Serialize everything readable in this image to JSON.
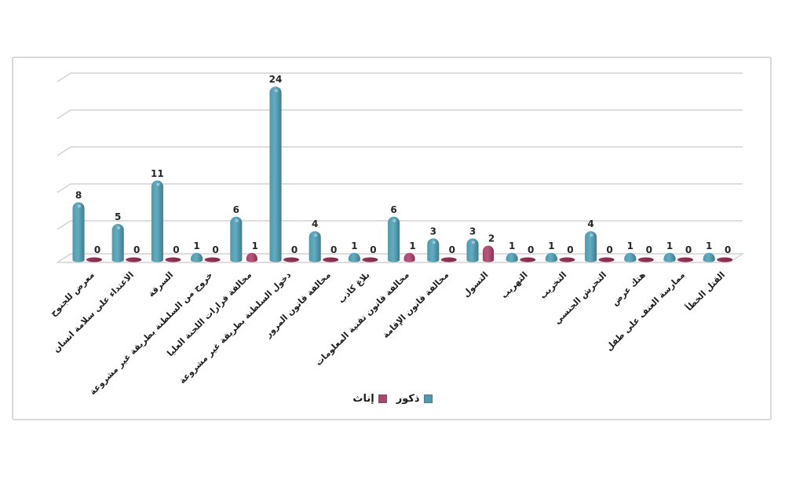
{
  "chart_data": {
    "type": "bar",
    "subtype": "3d-cylinder-column",
    "title": "",
    "xlabel": "",
    "ylabel": "",
    "ylim": [
      0,
      25
    ],
    "gridline_step": 5,
    "grid": true,
    "value_axis_labels_visible": false,
    "data_labels": true,
    "legend_position": "bottom-center",
    "categories_direction": "rtl",
    "categories": [
      "معرض للجنوح",
      "الاعتداء على سلامة انسان",
      "السرقة",
      "خروج من السلطنة بطريقة غير مشروعة",
      "مخالفة قرارات اللجنة العليا",
      "دخول السلطنة بطريقة غير مشروعة",
      "مخالفة قانون المرور",
      "بلاغ كاذب",
      "مخالفة قانون تقنية المعلومات",
      "مخالفة قانون الإقامة",
      "التسول",
      "التهريب",
      "التخريب",
      "التحرش الجنسي",
      "هتك عرض",
      "ممارسة العنف على طفل",
      "القتل الخطأ"
    ],
    "series": [
      {
        "name": "ذكور",
        "color": "#4E9CB4",
        "values": [
          8,
          5,
          11,
          1,
          6,
          24,
          4,
          1,
          6,
          3,
          3,
          1,
          1,
          4,
          1,
          1,
          1
        ]
      },
      {
        "name": "إناث",
        "color": "#A9486E",
        "values": [
          0,
          0,
          0,
          0,
          1,
          0,
          0,
          0,
          1,
          0,
          2,
          0,
          0,
          0,
          0,
          0,
          0
        ]
      }
    ]
  },
  "colors": {
    "male_bar": "#4E9CB4",
    "female_bar": "#A9486E",
    "female_zero_marker": "#8E3552",
    "gridline": "#CBCBCB",
    "chart_border": "#D9D9D9",
    "data_label_text": "#262626"
  }
}
